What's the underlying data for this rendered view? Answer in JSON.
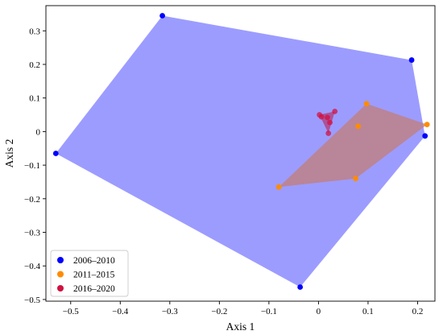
{
  "chart_data": {
    "type": "scatter",
    "xlabel": "Axis 1",
    "ylabel": "Axis 2",
    "xlim": [
      -0.55,
      0.235
    ],
    "ylim": [
      -0.505,
      0.375
    ],
    "xticks": [
      -0.5,
      -0.4,
      -0.3,
      -0.2,
      -0.1,
      0.0,
      0.1,
      0.2
    ],
    "xtick_labels": [
      "−0.5",
      "−0.4",
      "−0.3",
      "−0.2",
      "−0.1",
      "0",
      "0.1",
      "0.2"
    ],
    "yticks": [
      -0.5,
      -0.4,
      -0.3,
      -0.2,
      -0.1,
      0.0,
      0.1,
      0.2,
      0.3
    ],
    "ytick_labels": [
      "−0.5",
      "−0.4",
      "−0.3",
      "−0.2",
      "−0.1",
      "0",
      "0.1",
      "0.2",
      "0.3"
    ],
    "grid": false,
    "legend_position": "lower-left",
    "hulls": true,
    "series": [
      {
        "name": "2006–2010",
        "color": "#0000ff",
        "hull_color": "#9999ff",
        "points": [
          [
            -0.315,
            0.345
          ],
          [
            0.188,
            0.213
          ],
          [
            0.215,
            -0.013
          ],
          [
            -0.037,
            -0.463
          ],
          [
            -0.53,
            -0.065
          ]
        ]
      },
      {
        "name": "2011–2015",
        "color": "#ff8c00",
        "hull_color": "#c08080",
        "points": [
          [
            0.097,
            0.083
          ],
          [
            0.219,
            0.021
          ],
          [
            0.08,
            0.016
          ],
          [
            0.075,
            -0.14
          ],
          [
            -0.08,
            -0.165
          ]
        ]
      },
      {
        "name": "2016–2020",
        "color": "#d11141",
        "hull_color": "#b04080",
        "points": [
          [
            0.002,
            0.05
          ],
          [
            0.006,
            0.044
          ],
          [
            0.033,
            0.06
          ],
          [
            0.018,
            0.042
          ],
          [
            0.023,
            0.027
          ],
          [
            0.02,
            -0.005
          ]
        ]
      }
    ]
  }
}
